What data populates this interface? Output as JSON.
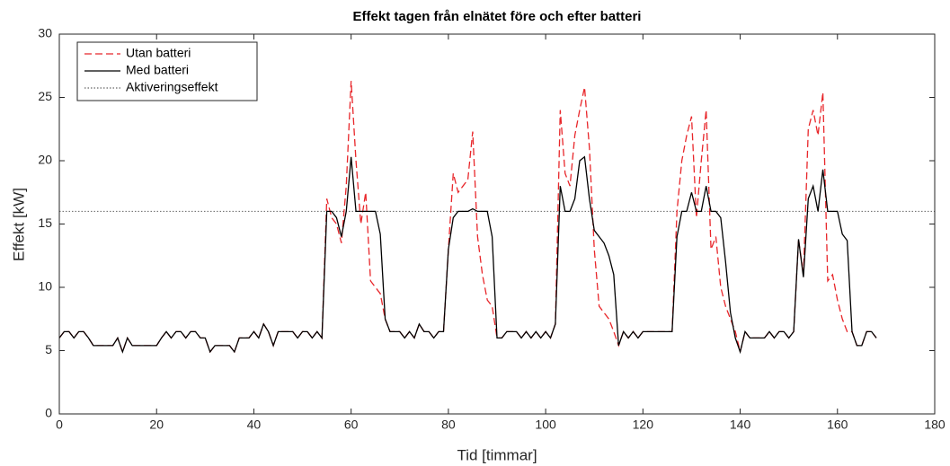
{
  "chart_data": {
    "type": "line",
    "title": "Effekt tagen från elnätet före och efter batteri",
    "xlabel": "Tid [timmar]",
    "ylabel": "Effekt [kW]",
    "xlim": [
      0,
      180
    ],
    "ylim": [
      0,
      30
    ],
    "xticks": [
      0,
      20,
      40,
      60,
      80,
      100,
      120,
      140,
      160,
      180
    ],
    "yticks": [
      0,
      5,
      10,
      15,
      20,
      25,
      30
    ],
    "legend": "top-left",
    "x": [
      0,
      1,
      2,
      3,
      4,
      5,
      6,
      7,
      8,
      9,
      10,
      11,
      12,
      13,
      14,
      15,
      16,
      17,
      18,
      19,
      20,
      21,
      22,
      23,
      24,
      25,
      26,
      27,
      28,
      29,
      30,
      31,
      32,
      33,
      34,
      35,
      36,
      37,
      38,
      39,
      40,
      41,
      42,
      43,
      44,
      45,
      46,
      47,
      48,
      49,
      50,
      51,
      52,
      53,
      54,
      55,
      56,
      57,
      58,
      59,
      60,
      61,
      62,
      63,
      64,
      65,
      66,
      67,
      68,
      69,
      70,
      71,
      72,
      73,
      74,
      75,
      76,
      77,
      78,
      79,
      80,
      81,
      82,
      83,
      84,
      85,
      86,
      87,
      88,
      89,
      90,
      91,
      92,
      93,
      94,
      95,
      96,
      97,
      98,
      99,
      100,
      101,
      102,
      103,
      104,
      105,
      106,
      107,
      108,
      109,
      110,
      111,
      112,
      113,
      114,
      115,
      116,
      117,
      118,
      119,
      120,
      121,
      122,
      123,
      124,
      125,
      126,
      127,
      128,
      129,
      130,
      131,
      132,
      133,
      134,
      135,
      136,
      137,
      138,
      139,
      140,
      141,
      142,
      143,
      144,
      145,
      146,
      147,
      148,
      149,
      150,
      151,
      152,
      153,
      154,
      155,
      156,
      157,
      158,
      159,
      160,
      161,
      162,
      163,
      164,
      165,
      166,
      167,
      168
    ],
    "series": [
      {
        "name": "Utan batteri",
        "color": "#e8262a",
        "dash": true,
        "values": [
          6,
          6.5,
          6.5,
          6,
          6.5,
          6.5,
          6,
          5.4,
          5.4,
          5.4,
          5.4,
          5.4,
          6,
          4.9,
          6,
          5.4,
          5.4,
          5.4,
          5.4,
          5.4,
          5.4,
          6,
          6.5,
          6,
          6.5,
          6.5,
          6,
          6.5,
          6.5,
          6,
          6,
          4.9,
          5.4,
          5.4,
          5.4,
          5.4,
          4.9,
          6,
          6,
          6,
          6.5,
          6,
          7.1,
          6.5,
          5.4,
          6.5,
          6.5,
          6.5,
          6.5,
          6,
          6.5,
          6.5,
          6,
          6.5,
          6,
          17,
          15.5,
          15,
          13.5,
          18,
          26.3,
          20,
          15,
          17.5,
          10.5,
          10,
          9.5,
          7.5,
          6.5,
          6.5,
          6.5,
          6,
          6.5,
          6,
          7.1,
          6.5,
          6.5,
          6,
          6.5,
          6.5,
          13,
          19,
          17.5,
          18,
          18.5,
          22.3,
          14,
          11,
          9,
          8.5,
          6,
          6,
          6.5,
          6.5,
          6.5,
          6,
          6.5,
          6,
          6.5,
          6,
          6.5,
          6,
          7.1,
          24,
          19,
          18,
          22,
          24,
          25.8,
          21,
          13,
          8.5,
          8,
          7.5,
          6.5,
          5.4,
          6.5,
          6,
          6.5,
          6,
          6.5,
          6.5,
          6.5,
          6.5,
          6.5,
          6.5,
          6.5,
          16,
          20,
          22,
          23.5,
          15.5,
          20,
          24,
          13,
          14,
          10,
          8.5,
          7.5,
          6.5,
          4.9,
          6.5,
          6,
          6,
          6,
          6,
          6.5,
          6,
          6.5,
          6.5,
          6,
          6.5,
          13.8,
          11,
          22.5,
          24,
          22,
          25.4,
          10.5,
          11,
          9,
          7.5,
          6.5,
          6.5,
          5.4,
          5.4,
          6.5,
          6.5,
          6
        ]
      },
      {
        "name": "Med batteri",
        "color": "#000000",
        "dash": false,
        "values": [
          6,
          6.5,
          6.5,
          6,
          6.5,
          6.5,
          6,
          5.4,
          5.4,
          5.4,
          5.4,
          5.4,
          6,
          4.9,
          6,
          5.4,
          5.4,
          5.4,
          5.4,
          5.4,
          5.4,
          6,
          6.5,
          6,
          6.5,
          6.5,
          6,
          6.5,
          6.5,
          6,
          6,
          4.9,
          5.4,
          5.4,
          5.4,
          5.4,
          4.9,
          6,
          6,
          6,
          6.5,
          6,
          7.1,
          6.5,
          5.4,
          6.5,
          6.5,
          6.5,
          6.5,
          6,
          6.5,
          6.5,
          6,
          6.5,
          6,
          16,
          16,
          15.5,
          14,
          16,
          20.3,
          16,
          16,
          16,
          16,
          16,
          14.2,
          7.5,
          6.5,
          6.5,
          6.5,
          6,
          6.5,
          6,
          7.1,
          6.5,
          6.5,
          6,
          6.5,
          6.5,
          13,
          15.5,
          16,
          16,
          16,
          16.2,
          16,
          16,
          16,
          14,
          6,
          6,
          6.5,
          6.5,
          6.5,
          6,
          6.5,
          6,
          6.5,
          6,
          6.5,
          6,
          7.1,
          18,
          16,
          16,
          17,
          20,
          20.3,
          17,
          14.5,
          14,
          13.5,
          12.5,
          11,
          5.4,
          6.5,
          6,
          6.5,
          6,
          6.5,
          6.5,
          6.5,
          6.5,
          6.5,
          6.5,
          6.5,
          14,
          16,
          16,
          17.5,
          16,
          16,
          18,
          16,
          16,
          15.5,
          12,
          8,
          6,
          4.9,
          6.5,
          6,
          6,
          6,
          6,
          6.5,
          6,
          6.5,
          6.5,
          6,
          6.5,
          13.8,
          10.8,
          17,
          18,
          16,
          19.3,
          16,
          16,
          16,
          14.2,
          13.7,
          6.5,
          5.4,
          5.4,
          6.5,
          6.5,
          6
        ]
      }
    ],
    "reference_line": {
      "name": "Aktiveringseffekt",
      "value": 16,
      "color": "#666666"
    }
  }
}
